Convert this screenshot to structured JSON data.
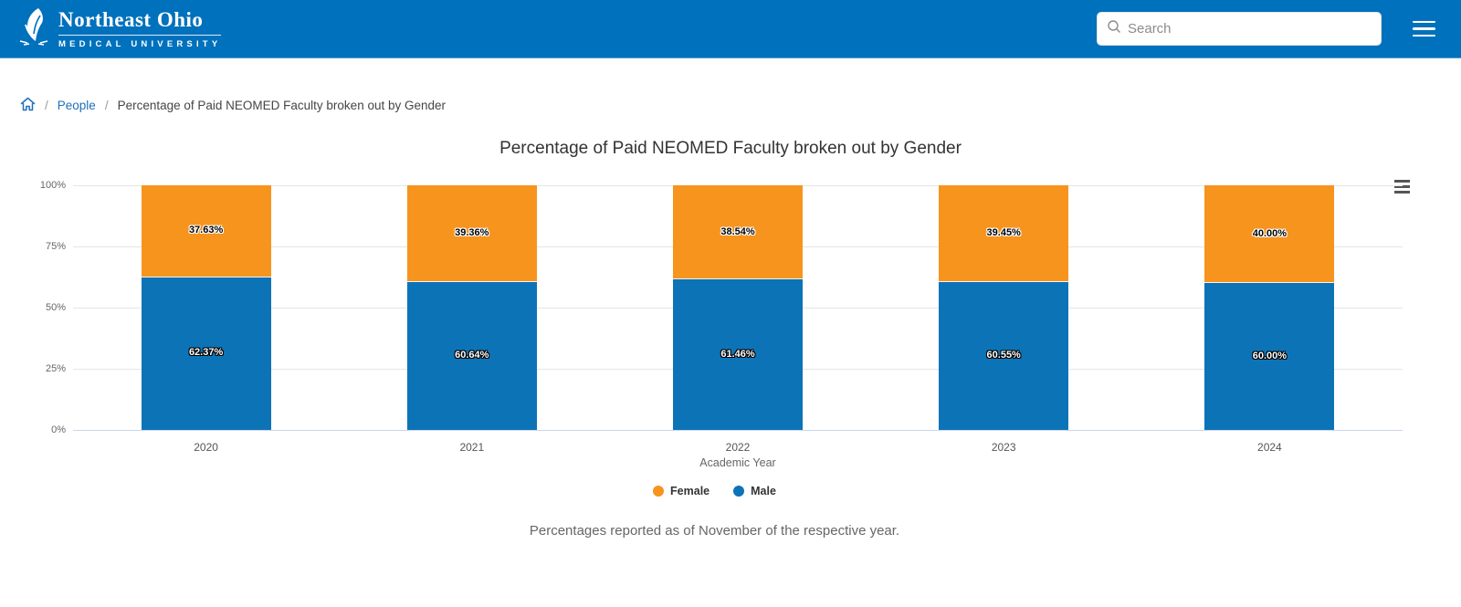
{
  "header": {
    "logo_name": "Northeast Ohio",
    "logo_sub": "MEDICAL UNIVERSITY",
    "search_placeholder": "Search",
    "bg_color": "#0071bc"
  },
  "breadcrumb": {
    "separator": "/",
    "link_people": "People",
    "current": "Percentage of Paid NEOMED Faculty broken out by Gender"
  },
  "chart_data": {
    "type": "bar",
    "stacked": true,
    "title": "Percentage of Paid NEOMED Faculty broken out by Gender",
    "categories": [
      "2020",
      "2021",
      "2022",
      "2023",
      "2024"
    ],
    "series": [
      {
        "name": "Male",
        "color": "#0d73b7",
        "values": [
          62.37,
          60.64,
          61.46,
          60.55,
          60.0
        ],
        "data_labels": [
          "62.37%",
          "60.64%",
          "61.46%",
          "60.55%",
          "60.00%"
        ]
      },
      {
        "name": "Female",
        "color": "#f7941e",
        "values": [
          37.63,
          39.36,
          38.54,
          39.45,
          40.0
        ],
        "data_labels": [
          "37.63%",
          "39.36%",
          "38.54%",
          "39.45%",
          "40.00%"
        ]
      }
    ],
    "xlabel": "Academic Year",
    "ylabel": "",
    "ylim": [
      0,
      100
    ],
    "yticks": [
      0,
      25,
      50,
      75,
      100
    ],
    "ytick_labels": [
      "0%",
      "25%",
      "50%",
      "75%",
      "100%"
    ],
    "grid": true,
    "legend_position": "bottom",
    "legend": [
      {
        "label": "Female",
        "color": "#f7941e"
      },
      {
        "label": "Male",
        "color": "#0d73b7"
      }
    ],
    "caption": "Percentages reported as of November of the respective year."
  }
}
